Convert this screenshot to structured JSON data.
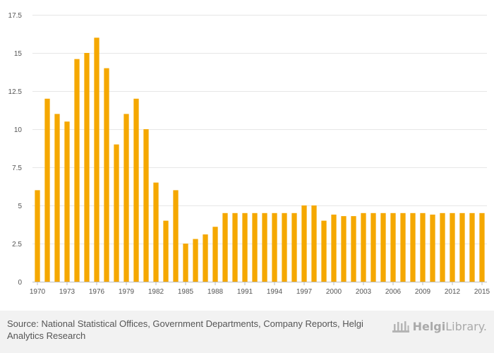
{
  "chart_data": {
    "type": "bar",
    "title": "",
    "xlabel": "",
    "ylabel": "",
    "ylim": [
      0,
      17.5
    ],
    "y_ticks": [
      "0",
      "2.5",
      "5",
      "7.5",
      "10",
      "12.5",
      "15",
      "17.5"
    ],
    "x_tick_labels": [
      "1970",
      "1973",
      "1976",
      "1979",
      "1982",
      "1985",
      "1988",
      "1991",
      "1994",
      "1997",
      "2000",
      "2003",
      "2006",
      "2009",
      "2012",
      "2015"
    ],
    "categories": [
      "1970",
      "1971",
      "1972",
      "1973",
      "1974",
      "1975",
      "1976",
      "1977",
      "1978",
      "1979",
      "1980",
      "1981",
      "1982",
      "1983",
      "1984",
      "1985",
      "1986",
      "1987",
      "1988",
      "1989",
      "1990",
      "1991",
      "1992",
      "1993",
      "1994",
      "1995",
      "1996",
      "1997",
      "1998",
      "1999",
      "2000",
      "2001",
      "2002",
      "2003",
      "2004",
      "2005",
      "2006",
      "2007",
      "2008",
      "2009",
      "2010",
      "2011",
      "2012",
      "2013",
      "2014",
      "2015"
    ],
    "values": [
      6,
      12,
      11,
      10.5,
      14.6,
      15,
      16,
      14,
      9,
      11,
      12,
      10,
      6.5,
      4,
      6,
      2.5,
      2.8,
      3.1,
      3.6,
      4.5,
      4.5,
      4.5,
      4.5,
      4.5,
      4.5,
      4.5,
      4.5,
      5,
      5,
      4,
      4.4,
      4.3,
      4.3,
      4.5,
      4.5,
      4.5,
      4.5,
      4.5,
      4.5,
      4.5,
      4.4,
      4.5,
      4.5,
      4.5,
      4.5,
      4.5
    ],
    "bar_color": "#f5a800",
    "grid": true
  },
  "footer": {
    "source_label": "Source:",
    "source_text": "National Statistical Offices, Government Departments, Company Reports, Helgi Analytics Research",
    "logo_part1": "Helgi",
    "logo_part2": "Library."
  }
}
